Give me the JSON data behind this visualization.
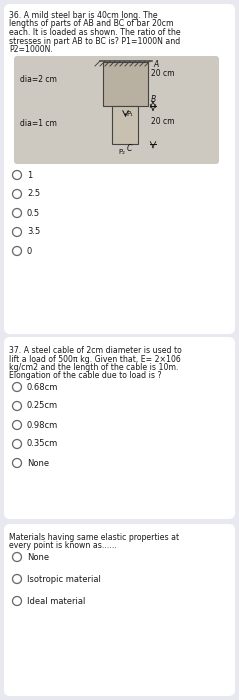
{
  "bg_color": "#e8e8f0",
  "card_color": "#ffffff",
  "text_color": "#1a1a1a",
  "q36_lines": [
    "36. A mild steel bar is 40cm long. The",
    "lengths of parts of AB and BC of bar 20cm",
    "each. It is loaded as shown. The ratio of the",
    "stresses in part AB to BC is? P1=1000N and",
    "P2=1000N."
  ],
  "q36_options": [
    "1",
    "2.5",
    "0.5",
    "3.5",
    "0"
  ],
  "q37_lines": [
    "37. A steel cable of 2cm diameter is used to",
    "lift a load of 500π kg. Given that, E= 2×106",
    "kg/cm2 and the length of the cable is 10m.",
    "Elongation of the cable due to load is ?"
  ],
  "q37_options": [
    "0.68cm",
    "0.25cm",
    "0.98cm",
    "0.35cm",
    "None"
  ],
  "q38_lines": [
    "Materials having same elastic properties at",
    "every point is known as......"
  ],
  "q38_options": [
    "None",
    "Isotropic material",
    "Ideal material"
  ],
  "diagram_bg": "#cdc8c0",
  "hatch_color": "#444444",
  "bar_top_color": "#b8b0a0",
  "bar_bot_color": "#c8c0b0",
  "option_circle_color": "#ffffff",
  "option_circle_edge": "#666666",
  "label_color": "#111111"
}
